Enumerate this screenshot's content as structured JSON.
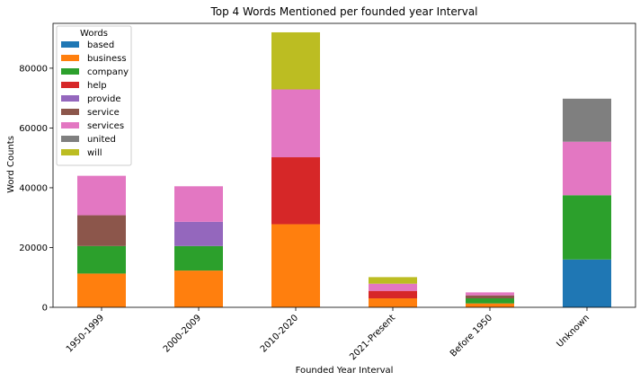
{
  "chart_data": {
    "type": "bar",
    "stacked": true,
    "title": "Top 4 Words Mentioned per founded year Interval",
    "xlabel": "Founded Year Interval",
    "ylabel": "Word Counts",
    "ylim": [
      0,
      95000
    ],
    "yticks": [
      0,
      20000,
      40000,
      60000,
      80000
    ],
    "grid": false,
    "legend_title": "Words",
    "legend_placement": "top-left",
    "categories": [
      "1950-1999",
      "2000-2009",
      "2010-2020",
      "2021-Present",
      "Before 1950",
      "Unknown"
    ],
    "series": [
      {
        "name": "based",
        "color": "#1f77b4",
        "values": [
          0,
          0,
          0,
          0,
          0,
          16000
        ]
      },
      {
        "name": "business",
        "color": "#ff7f0e",
        "values": [
          11300,
          12300,
          27800,
          3000,
          1300,
          0
        ]
      },
      {
        "name": "company",
        "color": "#2ca02c",
        "values": [
          9200,
          8200,
          0,
          0,
          1700,
          21500
        ]
      },
      {
        "name": "help",
        "color": "#d62728",
        "values": [
          0,
          0,
          22400,
          2500,
          0,
          0
        ]
      },
      {
        "name": "provide",
        "color": "#9467bd",
        "values": [
          0,
          8100,
          0,
          0,
          0,
          0
        ]
      },
      {
        "name": "service",
        "color": "#8c564b",
        "values": [
          10300,
          0,
          0,
          0,
          1000,
          0
        ]
      },
      {
        "name": "services",
        "color": "#e377c2",
        "values": [
          13200,
          11900,
          22700,
          2400,
          1000,
          17900
        ]
      },
      {
        "name": "united",
        "color": "#7f7f7f",
        "values": [
          0,
          0,
          0,
          0,
          0,
          14400
        ]
      },
      {
        "name": "will",
        "color": "#bcbd22",
        "values": [
          0,
          0,
          19100,
          2200,
          0,
          0
        ]
      }
    ]
  }
}
